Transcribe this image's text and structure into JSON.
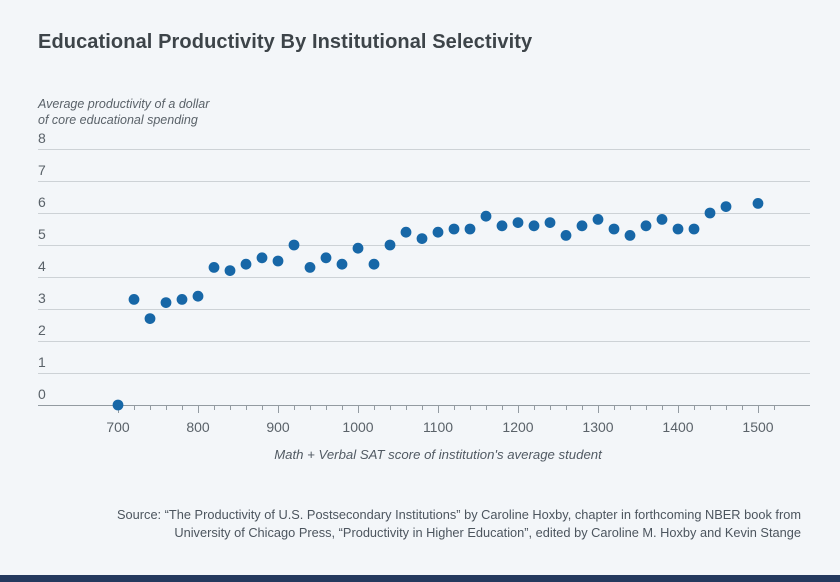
{
  "page": {
    "background_color": "#f3f6f9",
    "accent_bar_color": "#24395e"
  },
  "chart_data": {
    "type": "scatter",
    "title": "Educational Productivity By Institutional Selectivity",
    "ylabel": "Average productivity of a dollar\nof core educational spending",
    "xlabel": "Math + Verbal SAT score of institution's average student",
    "x": [
      700,
      720,
      740,
      760,
      780,
      800,
      820,
      840,
      860,
      880,
      900,
      920,
      940,
      960,
      980,
      1000,
      1020,
      1040,
      1060,
      1080,
      1100,
      1120,
      1140,
      1160,
      1180,
      1200,
      1220,
      1240,
      1260,
      1280,
      1300,
      1320,
      1340,
      1360,
      1380,
      1400,
      1420,
      1440,
      1460,
      1500
    ],
    "y": [
      0,
      3.3,
      2.7,
      3.2,
      3.3,
      3.4,
      4.3,
      4.2,
      4.4,
      4.6,
      4.5,
      5.0,
      4.3,
      4.6,
      4.4,
      4.9,
      4.4,
      5.0,
      5.4,
      5.2,
      5.4,
      5.5,
      5.5,
      5.9,
      5.6,
      5.7,
      5.6,
      5.7,
      5.3,
      5.6,
      5.8,
      5.5,
      5.3,
      5.6,
      5.8,
      5.5,
      5.5,
      6.0,
      6.2,
      6.3
    ],
    "x_ticks_major": [
      700,
      800,
      900,
      1000,
      1100,
      1200,
      1300,
      1400,
      1500
    ],
    "x_minor_tick_step": 20,
    "x_minor_tick_range": [
      700,
      1520
    ],
    "y_ticks": [
      0,
      1,
      2,
      3,
      4,
      5,
      6,
      7,
      8
    ],
    "xlim": [
      634,
      1563
    ],
    "ylim": [
      0,
      8
    ],
    "grid": "horizontal",
    "legend": "none",
    "dot_color": "#1767a7",
    "grid_color": "#cdd2d6",
    "axis_color": "#939ba1",
    "tick_text_color": "#5a6269",
    "axis_title_color": "#515a63"
  },
  "source": {
    "text": "Source: “The Productivity of U.S. Postsecondary Institutions” by Caroline Hoxby, chapter in forthcoming NBER book from\nUniversity of Chicago Press, “Productivity in Higher Education”, edited by Caroline M. Hoxby and Kevin Stange"
  }
}
